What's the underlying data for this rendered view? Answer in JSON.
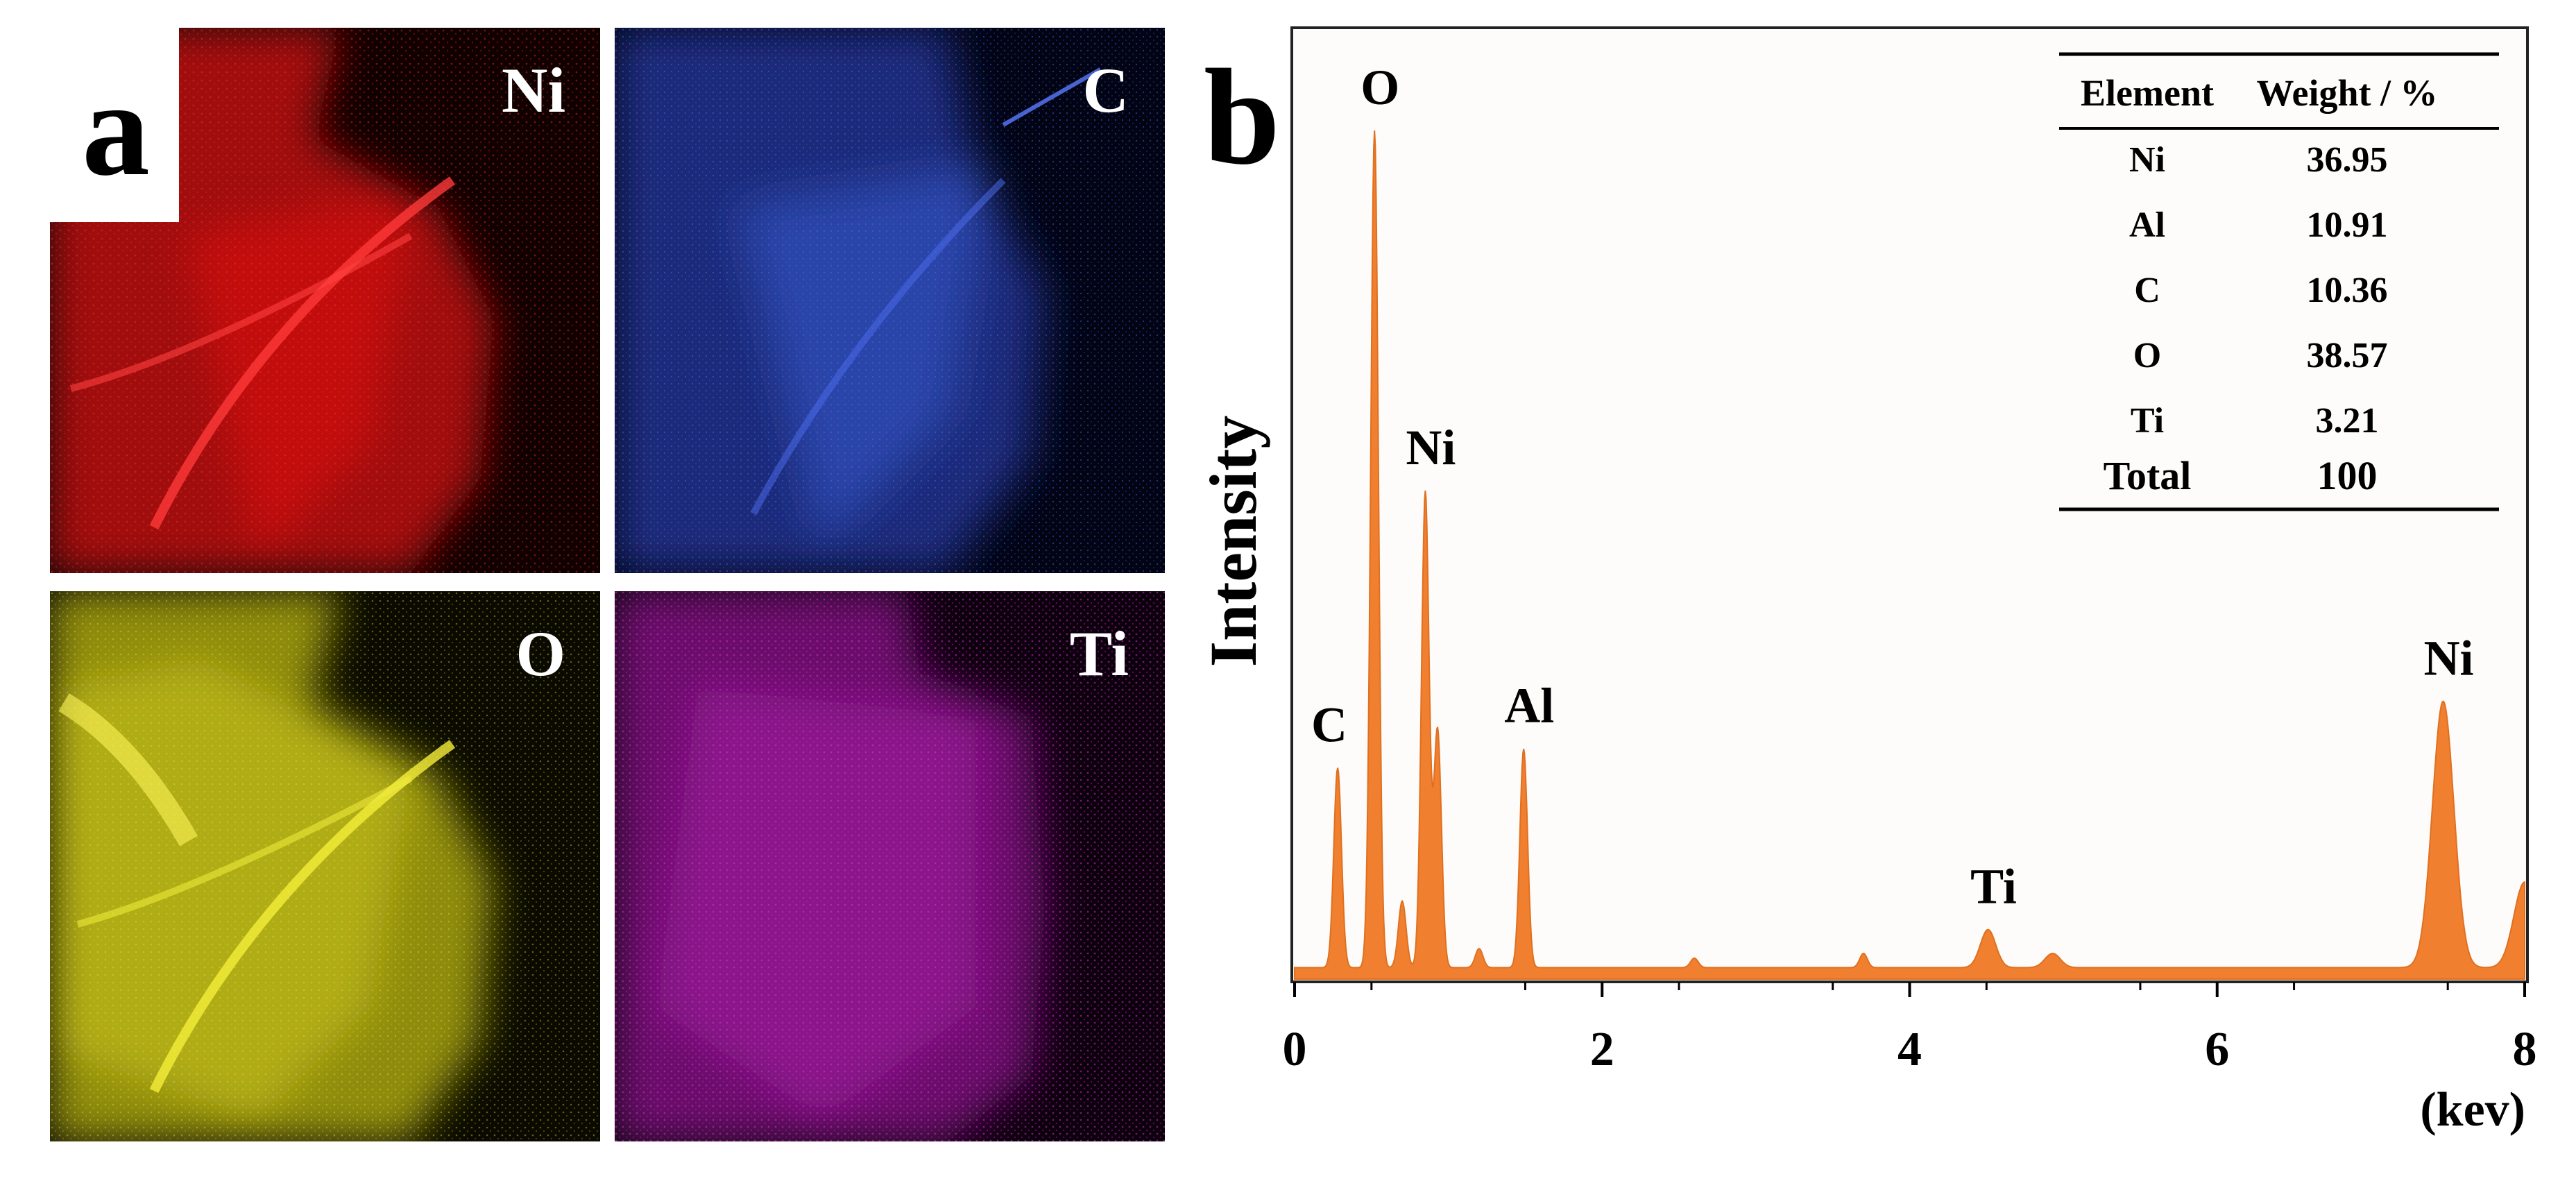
{
  "panel_a": {
    "letter": "a",
    "maps": [
      {
        "element": "Ni",
        "color": "#e01010"
      },
      {
        "element": "C",
        "color": "#3a5fd8"
      },
      {
        "element": "O",
        "color": "#d8d41a"
      },
      {
        "element": "Ti",
        "color": "#c81ec8"
      }
    ]
  },
  "panel_b": {
    "letter": "b",
    "ylabel": "Intensity",
    "xunit": "(kev)",
    "x_ticks": [
      "0",
      "2",
      "4",
      "6",
      "8"
    ],
    "table": {
      "headers": [
        "Element",
        "Weight / %"
      ],
      "rows": [
        [
          "Ni",
          "36.95"
        ],
        [
          "Al",
          "10.91"
        ],
        [
          "C",
          "10.36"
        ],
        [
          "O",
          "38.57"
        ],
        [
          "Ti",
          "3.21"
        ],
        [
          "Total",
          "100"
        ]
      ]
    }
  },
  "chart_data": {
    "type": "area",
    "title": "",
    "xlabel": "(kev)",
    "ylabel": "Intensity",
    "xlim": [
      0,
      8
    ],
    "ylim": [
      0,
      100
    ],
    "fill_color": "#f08030",
    "peaks": [
      {
        "label": "C",
        "x": 0.28,
        "y": 21
      },
      {
        "label": "O",
        "x": 0.52,
        "y": 88
      },
      {
        "label": "Ni",
        "x": 0.85,
        "y": 50
      },
      {
        "label": "Al",
        "x": 1.49,
        "y": 23
      },
      {
        "label": "Ti",
        "x": 4.51,
        "y": 4
      },
      {
        "label": "Ni",
        "x": 7.47,
        "y": 28
      }
    ],
    "minor_peaks": [
      {
        "x": 0.7,
        "y": 7
      },
      {
        "x": 0.93,
        "y": 25
      },
      {
        "x": 1.2,
        "y": 2
      },
      {
        "x": 2.6,
        "y": 1
      },
      {
        "x": 3.7,
        "y": 1.5
      },
      {
        "x": 4.93,
        "y": 1.5
      },
      {
        "x": 8.0,
        "y": 9
      }
    ]
  }
}
